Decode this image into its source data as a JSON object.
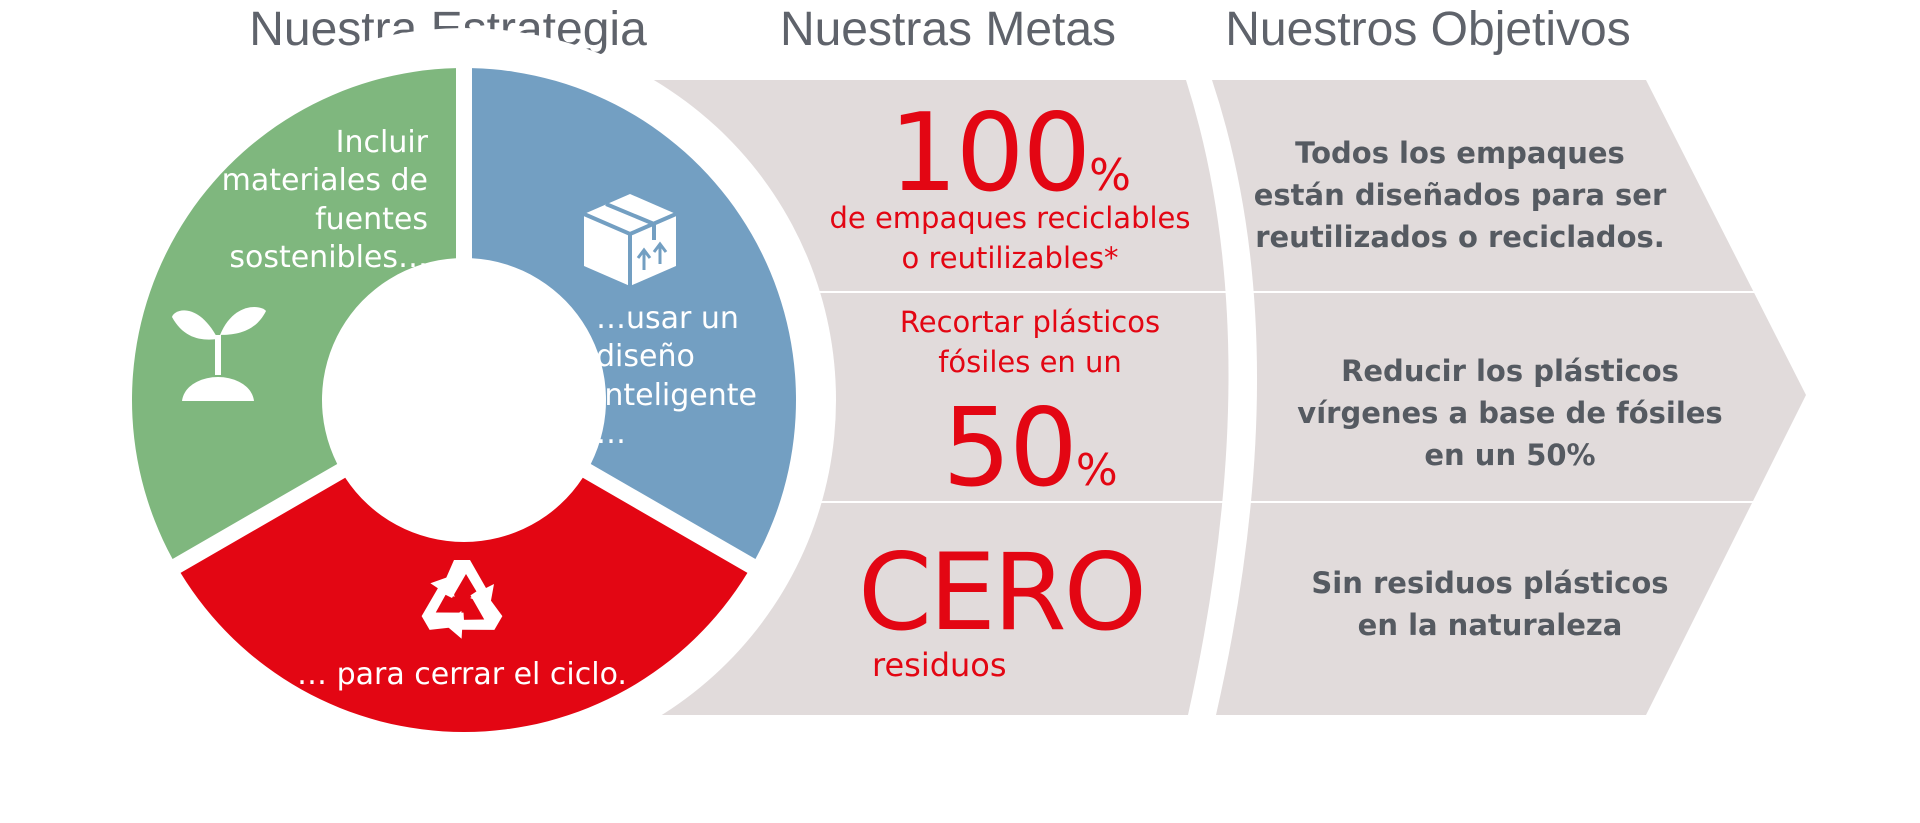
{
  "headers": {
    "strategy": "Nuestra Estrategia",
    "goals": "Nuestras Metas",
    "objectives": "Nuestros Objetivos"
  },
  "strategy": {
    "green_text": "Incluir materiales de fuentes sostenibles…",
    "blue_text": "…usar un diseño inteligente …",
    "red_text": "… para cerrar el ciclo.",
    "green_icon": "sprout-icon",
    "blue_icon": "package-box-icon",
    "red_icon": "recycle-icon"
  },
  "goals": {
    "row1": {
      "number": "100",
      "unit": "%",
      "text": "de empaques reciclables o reutilizables*"
    },
    "row2": {
      "pre_text": "Recortar plásticos fósiles en un",
      "number": "50",
      "unit": "%"
    },
    "row3": {
      "number": "CERO",
      "text": "residuos"
    }
  },
  "objectives": {
    "row1": "Todos los empaques están diseñados para ser reutilizados o reciclados.",
    "row2": "Reducir los plásticos vírgenes a base de fósiles en un 50%",
    "row3": "Sin residuos plásticos en la naturaleza"
  },
  "colors": {
    "green": "#7fb77e",
    "blue": "#739fc2",
    "red": "#e30613",
    "panel": "#e1dbdb",
    "header_text": "#5f636b",
    "objective_text": "#555a61"
  }
}
